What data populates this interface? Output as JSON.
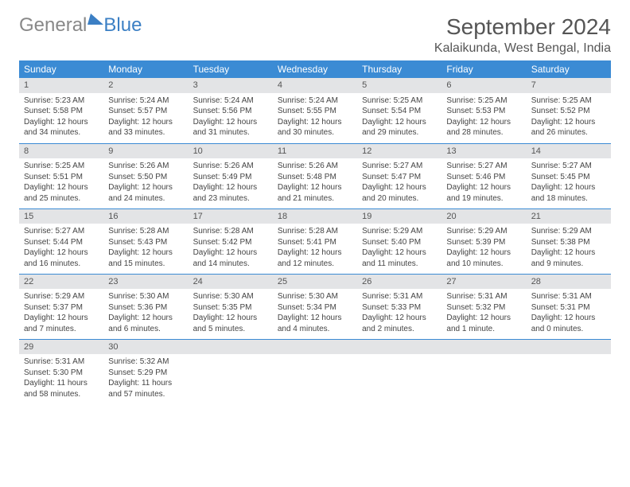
{
  "logo": {
    "text1": "General",
    "text2": "Blue"
  },
  "title": "September 2024",
  "location": "Kalaikunda, West Bengal, India",
  "colors": {
    "header_bg": "#3b8bd4",
    "header_text": "#ffffff",
    "daynum_bg": "#e3e4e6",
    "border": "#3b8bd4",
    "logo_blue": "#3b7fc4",
    "logo_gray": "#888888",
    "text": "#444444"
  },
  "weekdays": [
    "Sunday",
    "Monday",
    "Tuesday",
    "Wednesday",
    "Thursday",
    "Friday",
    "Saturday"
  ],
  "days": [
    {
      "n": "1",
      "sr": "5:23 AM",
      "ss": "5:58 PM",
      "dl": "12 hours and 34 minutes."
    },
    {
      "n": "2",
      "sr": "5:24 AM",
      "ss": "5:57 PM",
      "dl": "12 hours and 33 minutes."
    },
    {
      "n": "3",
      "sr": "5:24 AM",
      "ss": "5:56 PM",
      "dl": "12 hours and 31 minutes."
    },
    {
      "n": "4",
      "sr": "5:24 AM",
      "ss": "5:55 PM",
      "dl": "12 hours and 30 minutes."
    },
    {
      "n": "5",
      "sr": "5:25 AM",
      "ss": "5:54 PM",
      "dl": "12 hours and 29 minutes."
    },
    {
      "n": "6",
      "sr": "5:25 AM",
      "ss": "5:53 PM",
      "dl": "12 hours and 28 minutes."
    },
    {
      "n": "7",
      "sr": "5:25 AM",
      "ss": "5:52 PM",
      "dl": "12 hours and 26 minutes."
    },
    {
      "n": "8",
      "sr": "5:25 AM",
      "ss": "5:51 PM",
      "dl": "12 hours and 25 minutes."
    },
    {
      "n": "9",
      "sr": "5:26 AM",
      "ss": "5:50 PM",
      "dl": "12 hours and 24 minutes."
    },
    {
      "n": "10",
      "sr": "5:26 AM",
      "ss": "5:49 PM",
      "dl": "12 hours and 23 minutes."
    },
    {
      "n": "11",
      "sr": "5:26 AM",
      "ss": "5:48 PM",
      "dl": "12 hours and 21 minutes."
    },
    {
      "n": "12",
      "sr": "5:27 AM",
      "ss": "5:47 PM",
      "dl": "12 hours and 20 minutes."
    },
    {
      "n": "13",
      "sr": "5:27 AM",
      "ss": "5:46 PM",
      "dl": "12 hours and 19 minutes."
    },
    {
      "n": "14",
      "sr": "5:27 AM",
      "ss": "5:45 PM",
      "dl": "12 hours and 18 minutes."
    },
    {
      "n": "15",
      "sr": "5:27 AM",
      "ss": "5:44 PM",
      "dl": "12 hours and 16 minutes."
    },
    {
      "n": "16",
      "sr": "5:28 AM",
      "ss": "5:43 PM",
      "dl": "12 hours and 15 minutes."
    },
    {
      "n": "17",
      "sr": "5:28 AM",
      "ss": "5:42 PM",
      "dl": "12 hours and 14 minutes."
    },
    {
      "n": "18",
      "sr": "5:28 AM",
      "ss": "5:41 PM",
      "dl": "12 hours and 12 minutes."
    },
    {
      "n": "19",
      "sr": "5:29 AM",
      "ss": "5:40 PM",
      "dl": "12 hours and 11 minutes."
    },
    {
      "n": "20",
      "sr": "5:29 AM",
      "ss": "5:39 PM",
      "dl": "12 hours and 10 minutes."
    },
    {
      "n": "21",
      "sr": "5:29 AM",
      "ss": "5:38 PM",
      "dl": "12 hours and 9 minutes."
    },
    {
      "n": "22",
      "sr": "5:29 AM",
      "ss": "5:37 PM",
      "dl": "12 hours and 7 minutes."
    },
    {
      "n": "23",
      "sr": "5:30 AM",
      "ss": "5:36 PM",
      "dl": "12 hours and 6 minutes."
    },
    {
      "n": "24",
      "sr": "5:30 AM",
      "ss": "5:35 PM",
      "dl": "12 hours and 5 minutes."
    },
    {
      "n": "25",
      "sr": "5:30 AM",
      "ss": "5:34 PM",
      "dl": "12 hours and 4 minutes."
    },
    {
      "n": "26",
      "sr": "5:31 AM",
      "ss": "5:33 PM",
      "dl": "12 hours and 2 minutes."
    },
    {
      "n": "27",
      "sr": "5:31 AM",
      "ss": "5:32 PM",
      "dl": "12 hours and 1 minute."
    },
    {
      "n": "28",
      "sr": "5:31 AM",
      "ss": "5:31 PM",
      "dl": "12 hours and 0 minutes."
    },
    {
      "n": "29",
      "sr": "5:31 AM",
      "ss": "5:30 PM",
      "dl": "11 hours and 58 minutes."
    },
    {
      "n": "30",
      "sr": "5:32 AM",
      "ss": "5:29 PM",
      "dl": "11 hours and 57 minutes."
    }
  ],
  "labels": {
    "sunrise": "Sunrise: ",
    "sunset": "Sunset: ",
    "daylight": "Daylight: "
  }
}
